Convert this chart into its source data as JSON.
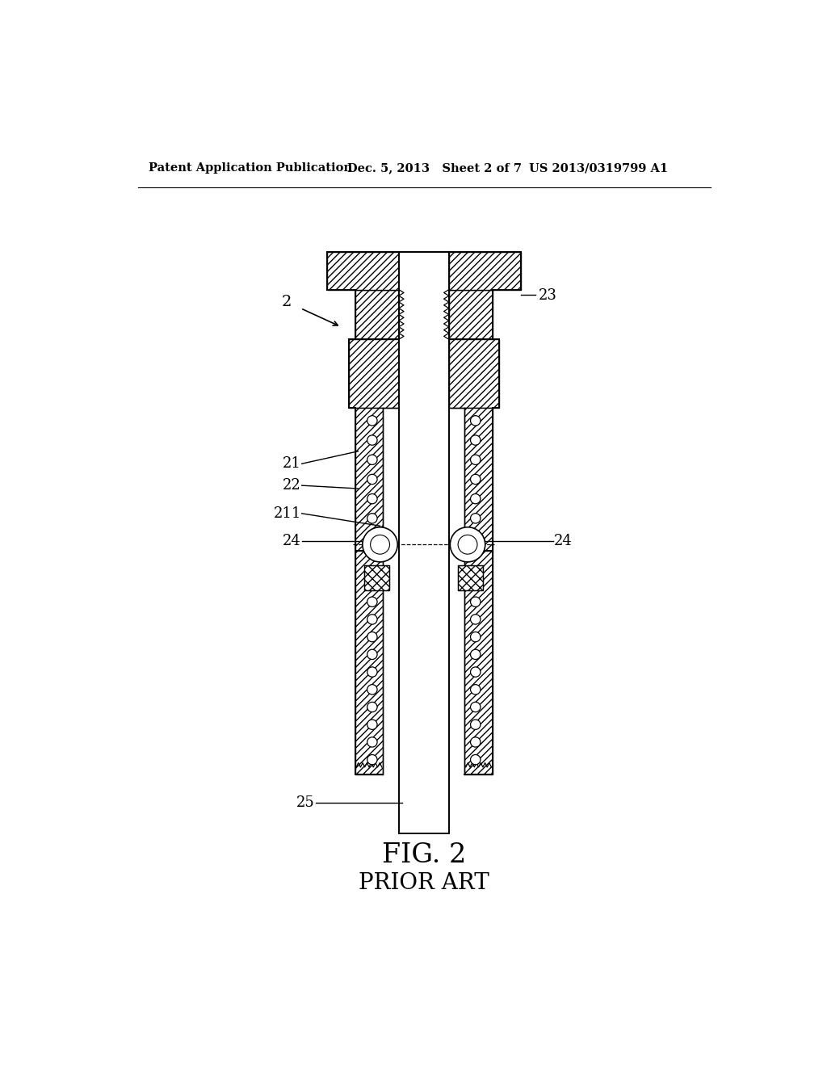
{
  "bg_color": "#ffffff",
  "line_color": "#000000",
  "header_left": "Patent Application Publication",
  "header_center": "Dec. 5, 2013   Sheet 2 of 7",
  "header_right": "US 2013/0319799 A1",
  "title": "FIG. 2",
  "subtitle": "PRIOR ART",
  "label_2": "2",
  "label_21": "21",
  "label_22": "22",
  "label_211": "211",
  "label_23": "23",
  "label_24L": "24",
  "label_24R": "24",
  "label_25": "25"
}
